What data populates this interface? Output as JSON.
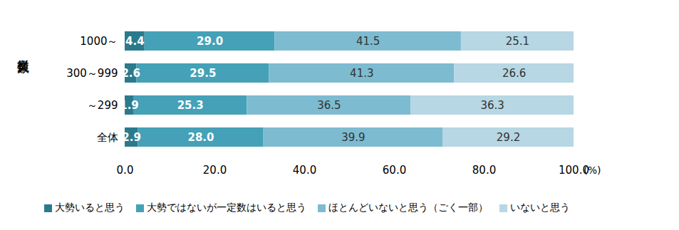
{
  "chart_data": {
    "type": "bar",
    "orientation": "horizontal",
    "stacked": true,
    "data_labels": true,
    "legend": "bottom",
    "grid": false,
    "ylabel": "従業員数",
    "xlabel": "(%)",
    "categories": [
      "1000～",
      "300～999",
      "～299",
      "全体"
    ],
    "xlim": [
      0,
      100
    ],
    "xticks": [
      {
        "value": 0,
        "label": "0.0"
      },
      {
        "value": 20,
        "label": "20.0"
      },
      {
        "value": 40,
        "label": "40.0"
      },
      {
        "value": 60,
        "label": "60.0"
      },
      {
        "value": 80,
        "label": "80.0"
      },
      {
        "value": 100,
        "label": "100.0"
      }
    ],
    "series": [
      {
        "name": "大勢いると思う",
        "color": "#2b7a8c",
        "values": [
          4.4,
          2.6,
          1.9,
          2.9
        ],
        "value_labels": [
          "4.4",
          "2.6",
          "1.9",
          "2.9"
        ]
      },
      {
        "name": "大勢ではないが一定数はいると思う",
        "color": "#44a1b7",
        "values": [
          29.0,
          29.5,
          25.3,
          28.0
        ],
        "value_labels": [
          "29.0",
          "29.5",
          "25.3",
          "28.0"
        ]
      },
      {
        "name": "ほとんどいないと思う（ごく一部）",
        "color": "#7dbbd0",
        "values": [
          41.5,
          41.3,
          36.5,
          39.9
        ],
        "value_labels": [
          "41.5",
          "41.3",
          "36.5",
          "39.9"
        ]
      },
      {
        "name": "いないと思う",
        "color": "#b6d7e3",
        "values": [
          25.1,
          26.6,
          36.3,
          29.2
        ],
        "value_labels": [
          "25.1",
          "26.6",
          "36.3",
          "29.2"
        ]
      }
    ]
  }
}
